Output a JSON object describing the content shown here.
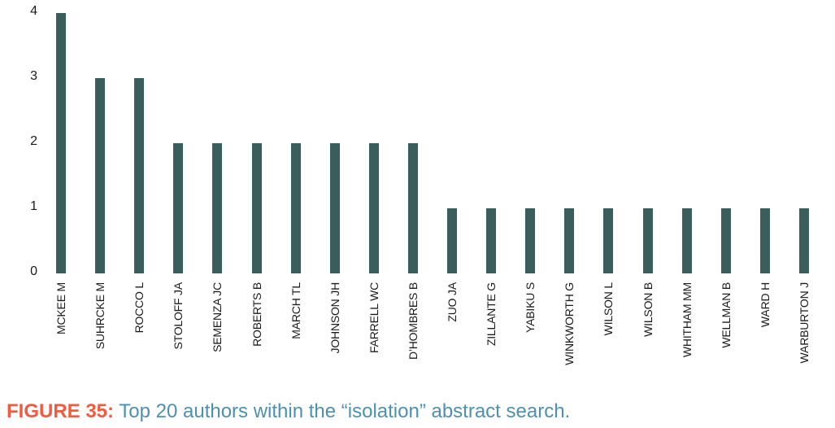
{
  "caption": {
    "label": "FIGURE 35:",
    "text": "Top 20 authors within the “isolation” abstract search.",
    "label_color": "#F15B40",
    "text_color": "#4D91AE"
  },
  "chart_data": {
    "type": "bar",
    "title": "FIGURE 35: Top 20 authors within the “isolation” abstract search.",
    "categories": [
      "MCKEE M",
      "SUHRCKE M",
      "ROCCO L",
      "STOLOFF JA",
      "SEMENZA JC",
      "ROBERTS B",
      "MARCH TL",
      "JOHNSON JH",
      "FARRELL WC",
      "D’HOMBRES B",
      "ZUO JA",
      "ZILLANTE G",
      "YABIKU S",
      "WINKWORTH G",
      "WILSON L",
      "WILSON B",
      "WHITHAM MM",
      "WELLMAN B",
      "WARD H",
      "WARBURTON J"
    ],
    "values": [
      4,
      3,
      3,
      2,
      2,
      2,
      2,
      2,
      2,
      2,
      1,
      1,
      1,
      1,
      1,
      1,
      1,
      1,
      1,
      1
    ],
    "xlabel": "",
    "ylabel": "",
    "ylim": [
      0,
      4
    ],
    "yticks": [
      0,
      1,
      2,
      3,
      4
    ],
    "grid": false,
    "legend_position": "none",
    "bar_color": "#3A5E5C",
    "axis_label_color": "#1B1B1B"
  }
}
